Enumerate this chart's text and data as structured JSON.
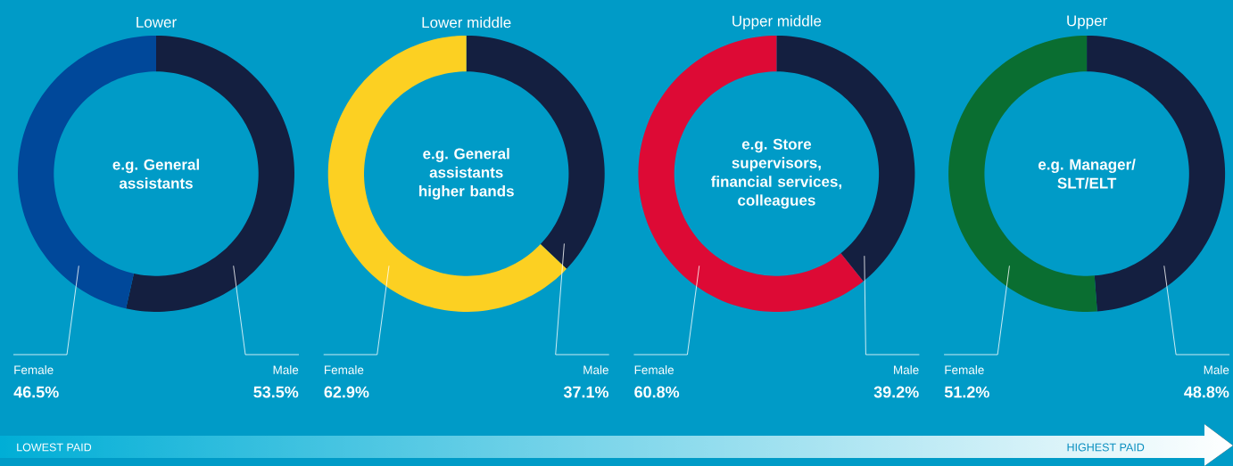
{
  "chart_data": [
    {
      "type": "donut",
      "title": "Lower",
      "annotations": [
        "e.g. General assistants"
      ],
      "categories": [
        "Female",
        "Male"
      ],
      "values": [
        46.5,
        53.5
      ],
      "value_labels": [
        "46.5%",
        "53.5%"
      ],
      "colors": [
        "#00489a",
        "#141f40"
      ]
    },
    {
      "type": "donut",
      "title": "Lower middle",
      "annotations": [
        "e.g. General assistants higher bands"
      ],
      "categories": [
        "Female",
        "Male"
      ],
      "values": [
        62.9,
        37.1
      ],
      "value_labels": [
        "62.9%",
        "37.1%"
      ],
      "colors": [
        "#fcd022",
        "#141f40"
      ]
    },
    {
      "type": "donut",
      "title": "Upper middle",
      "annotations": [
        "e.g. Store supervisors, financial services, colleagues"
      ],
      "categories": [
        "Female",
        "Male"
      ],
      "values": [
        60.8,
        39.2
      ],
      "value_labels": [
        "60.8%",
        "39.2%"
      ],
      "colors": [
        "#dd0a35",
        "#141f40"
      ]
    },
    {
      "type": "donut",
      "title": "Upper",
      "annotations": [
        "e.g. Manager/ SLT/ELT"
      ],
      "categories": [
        "Female",
        "Male"
      ],
      "values": [
        51.2,
        48.8
      ],
      "value_labels": [
        "51.2%",
        "48.8%"
      ],
      "colors": [
        "#0a6e31",
        "#141f40"
      ]
    },
    {
      "type": "other",
      "annotations": [
        "LOWEST PAID",
        "HIGHEST PAID"
      ]
    }
  ]
}
